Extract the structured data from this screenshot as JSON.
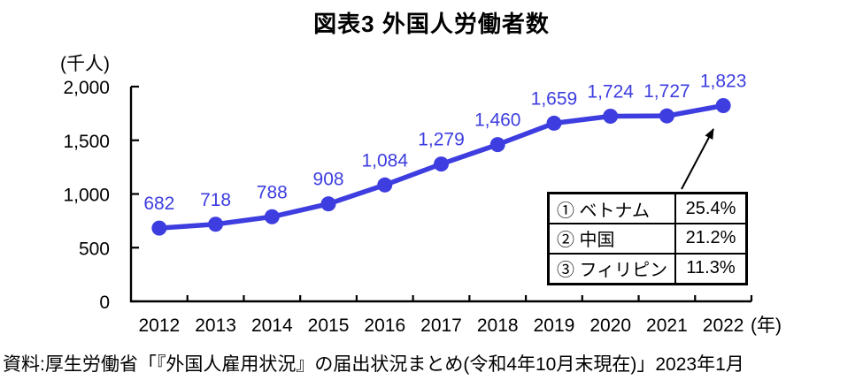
{
  "title": "図表3  外国人労働者数",
  "source_note": "資料:厚生労働省「『外国人雇用状況』の届出状況まとめ(令和4年10月末現在)」2023年1月",
  "colors": {
    "accent": "#3d3de0",
    "axis": "#000000",
    "background": "#ffffff"
  },
  "chart_data": {
    "type": "line",
    "title": "図表3  外国人労働者数",
    "unit_label": "(千人)",
    "x_suffix_label": "(年)",
    "categories": [
      "2012",
      "2013",
      "2014",
      "2015",
      "2016",
      "2017",
      "2018",
      "2019",
      "2020",
      "2021",
      "2022"
    ],
    "values": [
      682,
      718,
      788,
      908,
      1084,
      1279,
      1460,
      1659,
      1724,
      1727,
      1823
    ],
    "value_labels": [
      "682",
      "718",
      "788",
      "908",
      "1,084",
      "1,279",
      "1,460",
      "1,659",
      "1,724",
      "1,727",
      "1,823"
    ],
    "ylim": [
      0,
      2000
    ],
    "yticks": [
      0,
      500,
      1000,
      1500,
      2000
    ],
    "ytick_labels": [
      "0",
      "500",
      "1,000",
      "1,500",
      "2,000"
    ],
    "grid": false,
    "legend": "none",
    "line_color": "#3d3de0",
    "annotation_arrow_target": "1,823"
  },
  "annotation_table": {
    "rows": [
      {
        "label": "① ベトナム",
        "value": "25.4%"
      },
      {
        "label": "② 中国",
        "value": "21.2%"
      },
      {
        "label": "③ フィリピン",
        "value": "11.3%"
      }
    ]
  }
}
